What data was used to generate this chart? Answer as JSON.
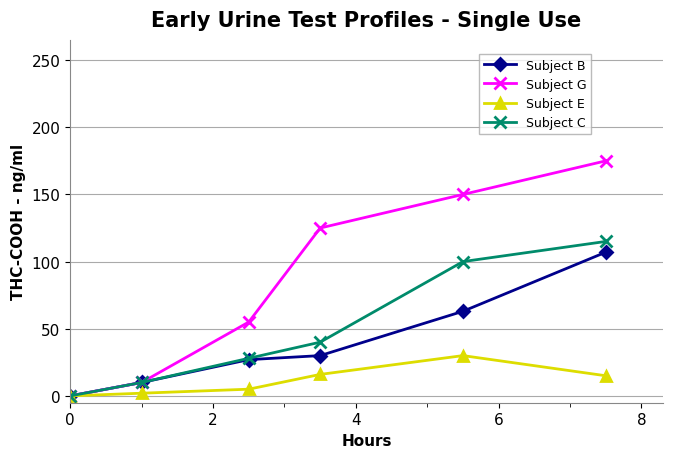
{
  "title": "Early Urine Test Profiles - Single Use",
  "xlabel": "Hours",
  "ylabel": "THC-COOH - ng/ml",
  "xlim": [
    0,
    8.3
  ],
  "ylim": [
    -5,
    265
  ],
  "yticks": [
    0,
    50,
    100,
    150,
    200,
    250
  ],
  "xticks": [
    0,
    2,
    4,
    6,
    8
  ],
  "series": [
    {
      "label": "Subject B",
      "x": [
        0,
        1,
        2.5,
        3.5,
        5.5,
        7.5
      ],
      "y": [
        0,
        10,
        27,
        30,
        63,
        107
      ],
      "color": "#00008B",
      "marker": "D",
      "markersize": 6,
      "linewidth": 2.0
    },
    {
      "label": "Subject G",
      "x": [
        0,
        1,
        2.5,
        3.5,
        5.5,
        7.5
      ],
      "y": [
        0,
        10,
        55,
        125,
        150,
        175
      ],
      "color": "#FF00FF",
      "marker": "x",
      "markersize": 8,
      "linewidth": 2.0
    },
    {
      "label": "Subject E",
      "x": [
        0,
        1,
        2.5,
        3.5,
        5.5,
        7.5
      ],
      "y": [
        0,
        2,
        5,
        16,
        30,
        15
      ],
      "color": "#DDDD00",
      "marker": "^",
      "markersize": 7,
      "linewidth": 2.0
    },
    {
      "label": "Subject C",
      "x": [
        0,
        1,
        2.5,
        3.5,
        5.5,
        7.5
      ],
      "y": [
        0,
        10,
        28,
        40,
        100,
        115
      ],
      "color": "#008B6B",
      "marker": "x",
      "markersize": 8,
      "linewidth": 2.0
    }
  ],
  "background_color": "#ffffff",
  "grid_color": "#aaaaaa",
  "title_fontsize": 15,
  "axis_label_fontsize": 11,
  "tick_fontsize": 11,
  "legend_fontsize": 9
}
